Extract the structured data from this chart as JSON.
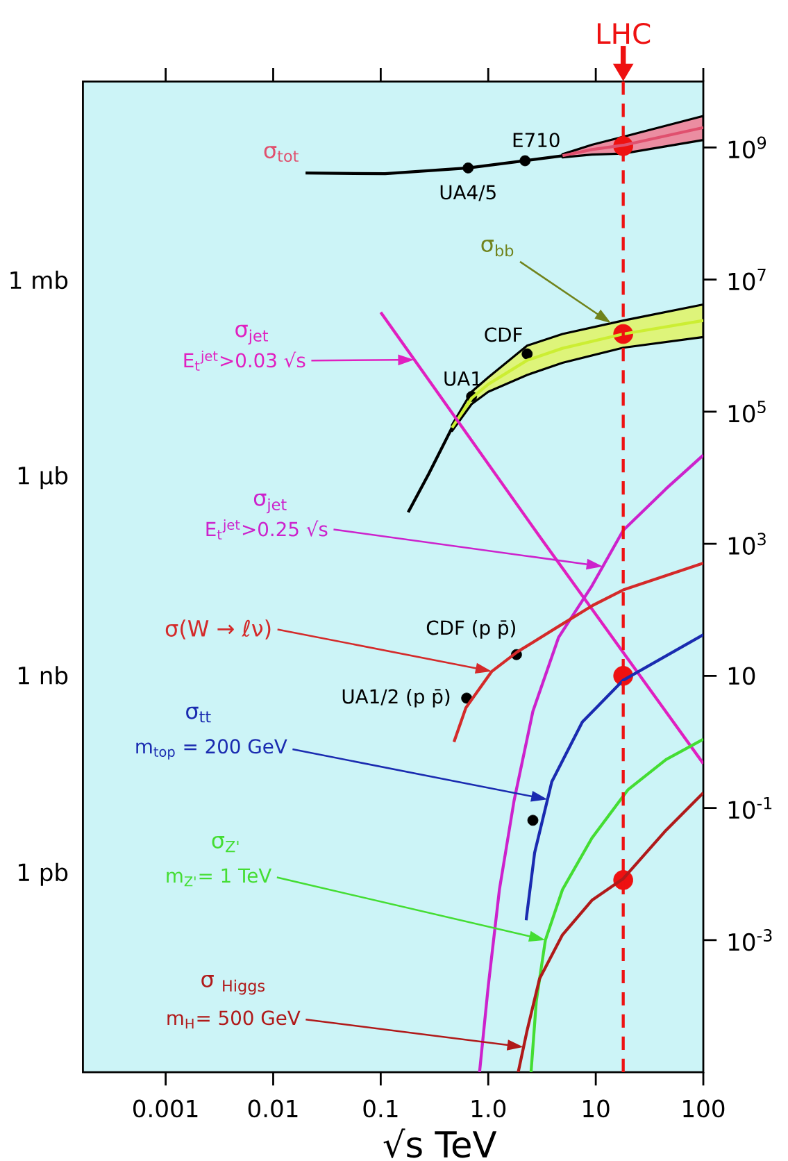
{
  "chart_data": {
    "type": "line",
    "xlabel": "√s TeV",
    "log": "xy",
    "xlim": [
      0.00017,
      100
    ],
    "ylim": [
      1e-05,
      10000000000.0
    ],
    "xticks": [
      0.001,
      0.01,
      0.1,
      {
        "value": 1,
        "label": "1.0"
      },
      10,
      100
    ],
    "yticks": [
      {
        "value": 0.001,
        "label": "10$^{-3}$"
      },
      {
        "value": 0.1,
        "label": "10$^{-1}$"
      },
      10,
      {
        "value": 1000.0,
        "label": "10$^{3}$"
      },
      {
        "value": 100000.0,
        "label": "10$^{5}$"
      },
      {
        "value": 10000000.0,
        "label": "10$^{7}$"
      },
      {
        "value": 1000000000.0,
        "label": "10$^{9}$"
      }
    ],
    "ref_lines": [
      {
        "axis": "x",
        "value": 18,
        "label": "LHC",
        "color": "#ee1111",
        "line_style": "dashed"
      }
    ],
    "series": [
      {
        "name": "σ$_{tot}$",
        "color": "#e0506e",
        "x": [
          4.9,
          9.2,
          18,
          100
        ],
        "values": [
          750000000.0,
          930000000.0,
          1080000000.0,
          2000000000.0
        ],
        "lower": [
          710000000.0,
          780000000.0,
          810000000.0,
          1300000000.0
        ],
        "upper": [
          790000000.0,
          1100000000.0,
          1450000000.0,
          3000000000.0
        ]
      },
      {
        "color": "#000000",
        "x": [
          0.02,
          0.11,
          0.65,
          2.2,
          4.9
        ],
        "values": [
          410000000.0,
          400000000.0,
          490000000.0,
          630000000.0,
          750000000.0
        ]
      },
      {
        "name": "σ$_{bb}$",
        "color": "#ccee33",
        "x": [
          0.46,
          0.7,
          1.0,
          2.3,
          4.9,
          18,
          100
        ],
        "values": [
          57000,
          160000.0,
          260000.0,
          600000.0,
          910000.0,
          1500000.0,
          2400000.0
        ],
        "lower": [
          51000,
          130000,
          200000,
          360000,
          550000,
          930000,
          1350000.0
        ],
        "upper": [
          63000,
          200000,
          330000,
          1000000.0,
          1500000.0,
          2400000.0,
          4200000.0
        ]
      },
      {
        "color": "#000000",
        "x": [
          0.18,
          0.28,
          0.46
        ],
        "values": [
          3000,
          11500,
          57000
        ]
      },
      {
        "name": "σ$_{jet}$",
        "color": "#e020c0",
        "x": [
          0.1,
          3.1,
          100
        ],
        "values": [
          3200000.0,
          1200,
          0.47
        ]
      },
      {
        "name": "σ$_{jet}$",
        "color": "#cc22cc",
        "x": [
          0.83,
          1.0,
          1.27,
          1.74,
          2.6,
          4.5,
          9.2,
          18,
          45,
          100
        ],
        "values": [
          1e-05,
          0.0002,
          0.0058,
          0.13,
          2.9,
          38,
          230,
          1600,
          6800,
          22000
        ]
      },
      {
        "name": "σ(W → ℓν)",
        "color": "#d42a2a",
        "x": [
          0.48,
          0.62,
          1.08,
          1.86,
          4.5,
          9.4,
          18,
          100
        ],
        "values": [
          1,
          3.3,
          11.7,
          23,
          56,
          117,
          200,
          510
        ]
      },
      {
        "name": "σ$_{tt}$",
        "color": "#1a2bb0",
        "x": [
          2.25,
          2.7,
          3.9,
          7.5,
          18,
          100
        ],
        "values": [
          0.002,
          0.021,
          0.25,
          2,
          8.6,
          42
        ]
      },
      {
        "name": "σ$_{Z'}$",
        "color": "#44dd33",
        "x": [
          2.5,
          2.8,
          3.4,
          4.9,
          9.2,
          20,
          45,
          100
        ],
        "values": [
          1e-05,
          0.00012,
          0.001,
          0.0058,
          0.035,
          0.19,
          0.54,
          1.1
        ]
      },
      {
        "name": "σ $_{Higgs}$",
        "color": "#b01a1a",
        "x": [
          1.9,
          2.3,
          3.0,
          4.9,
          9.2,
          18,
          45,
          100
        ],
        "values": [
          1e-05,
          4.3e-05,
          0.00026,
          0.0012,
          0.004,
          0.0085,
          0.046,
          0.17
        ]
      },
      {
        "type": "scatter",
        "marker": "circle",
        "color": "#000000",
        "x": [
          0.65,
          2.2,
          0.7,
          2.3,
          1.83,
          0.63,
          2.6
        ],
        "values": [
          490000000.0,
          630000000.0,
          170000.0,
          750000.0,
          21,
          4.6,
          0.065
        ]
      },
      {
        "type": "scatter",
        "marker": "circle",
        "color": "#ee1111",
        "x": [
          18,
          18,
          18,
          18
        ],
        "values": [
          1050000000.0,
          1500000.0,
          10,
          0.0081
        ]
      }
    ],
    "annotations": [
      {
        "text": "E710",
        "x": 2.2,
        "y": 630000000.0
      },
      {
        "text": "UA4/5",
        "x": 0.65,
        "y": 490000000.0
      },
      {
        "text": "CDF",
        "x": 2.3,
        "y": 750000.0
      },
      {
        "text": "UA1",
        "x": 0.7,
        "y": 170000.0
      },
      {
        "text": "CDF (p p̄)",
        "x": 1.83,
        "y": 21
      },
      {
        "text": "UA1/2 (p p̄)",
        "x": 0.63,
        "y": 4.6
      },
      "E$_{t}$$^{jet}$>0.03 √s",
      "E$_{t}$$^{jet}$>0.25 √s",
      "m$_{top}$ = 200 GeV",
      "m$_{Z'}$= 1 TeV",
      "m$_{H}$= 500 GeV",
      "1 mb",
      "1 μb",
      "1 nb",
      "1 pb"
    ]
  }
}
